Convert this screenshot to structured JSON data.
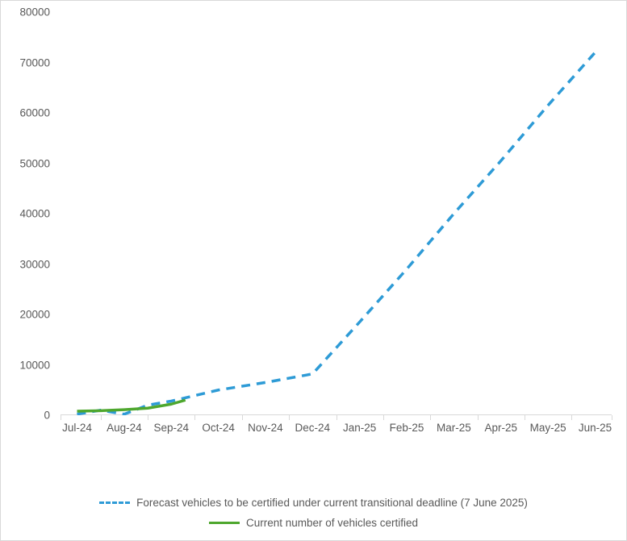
{
  "chart": {
    "type": "line",
    "background_color": "#ffffff",
    "border_color": "#d9d9d9",
    "axis_text_color": "#595959",
    "tick_fontsize": 13.5,
    "legend_fontsize": 13.5,
    "ylim": [
      0,
      80000
    ],
    "ytick_step": 10000,
    "yticks": [
      "0",
      "10000",
      "20000",
      "30000",
      "40000",
      "50000",
      "60000",
      "70000",
      "80000"
    ],
    "x_categories": [
      "Jul-24",
      "Aug-24",
      "Sep-24",
      "Oct-24",
      "Nov-24",
      "Dec-24",
      "Jan-25",
      "Feb-25",
      "Mar-25",
      "Apr-25",
      "May-25",
      "Jun-25"
    ],
    "series": [
      {
        "id": "forecast",
        "label": "Forecast vehicles to be certified under current transitional deadline (7 June 2025)",
        "color": "#2e9bd6",
        "style": "dashed",
        "dash_pattern": "11 8",
        "line_width": 3.5,
        "data": [
          {
            "x": 0,
            "y": 200
          },
          {
            "x": 0.5,
            "y": 1000
          },
          {
            "x": 1,
            "y": 200
          },
          {
            "x": 1.5,
            "y": 2000
          },
          {
            "x": 2,
            "y": 2800
          },
          {
            "x": 3,
            "y": 5000
          },
          {
            "x": 4,
            "y": 6500
          },
          {
            "x": 5,
            "y": 8200
          },
          {
            "x": 6,
            "y": 18500
          },
          {
            "x": 7,
            "y": 29000
          },
          {
            "x": 8,
            "y": 40000
          },
          {
            "x": 9,
            "y": 50500
          },
          {
            "x": 10,
            "y": 61500
          },
          {
            "x": 11,
            "y": 72000
          }
        ]
      },
      {
        "id": "current",
        "label": "Current number of vehicles certified",
        "color": "#4ea72e",
        "style": "solid",
        "line_width": 3.5,
        "data": [
          {
            "x": 0,
            "y": 800
          },
          {
            "x": 0.5,
            "y": 900
          },
          {
            "x": 1,
            "y": 1100
          },
          {
            "x": 1.5,
            "y": 1400
          },
          {
            "x": 2,
            "y": 2200
          },
          {
            "x": 2.3,
            "y": 3000
          }
        ]
      }
    ],
    "legend_order": [
      "forecast",
      "current"
    ]
  }
}
